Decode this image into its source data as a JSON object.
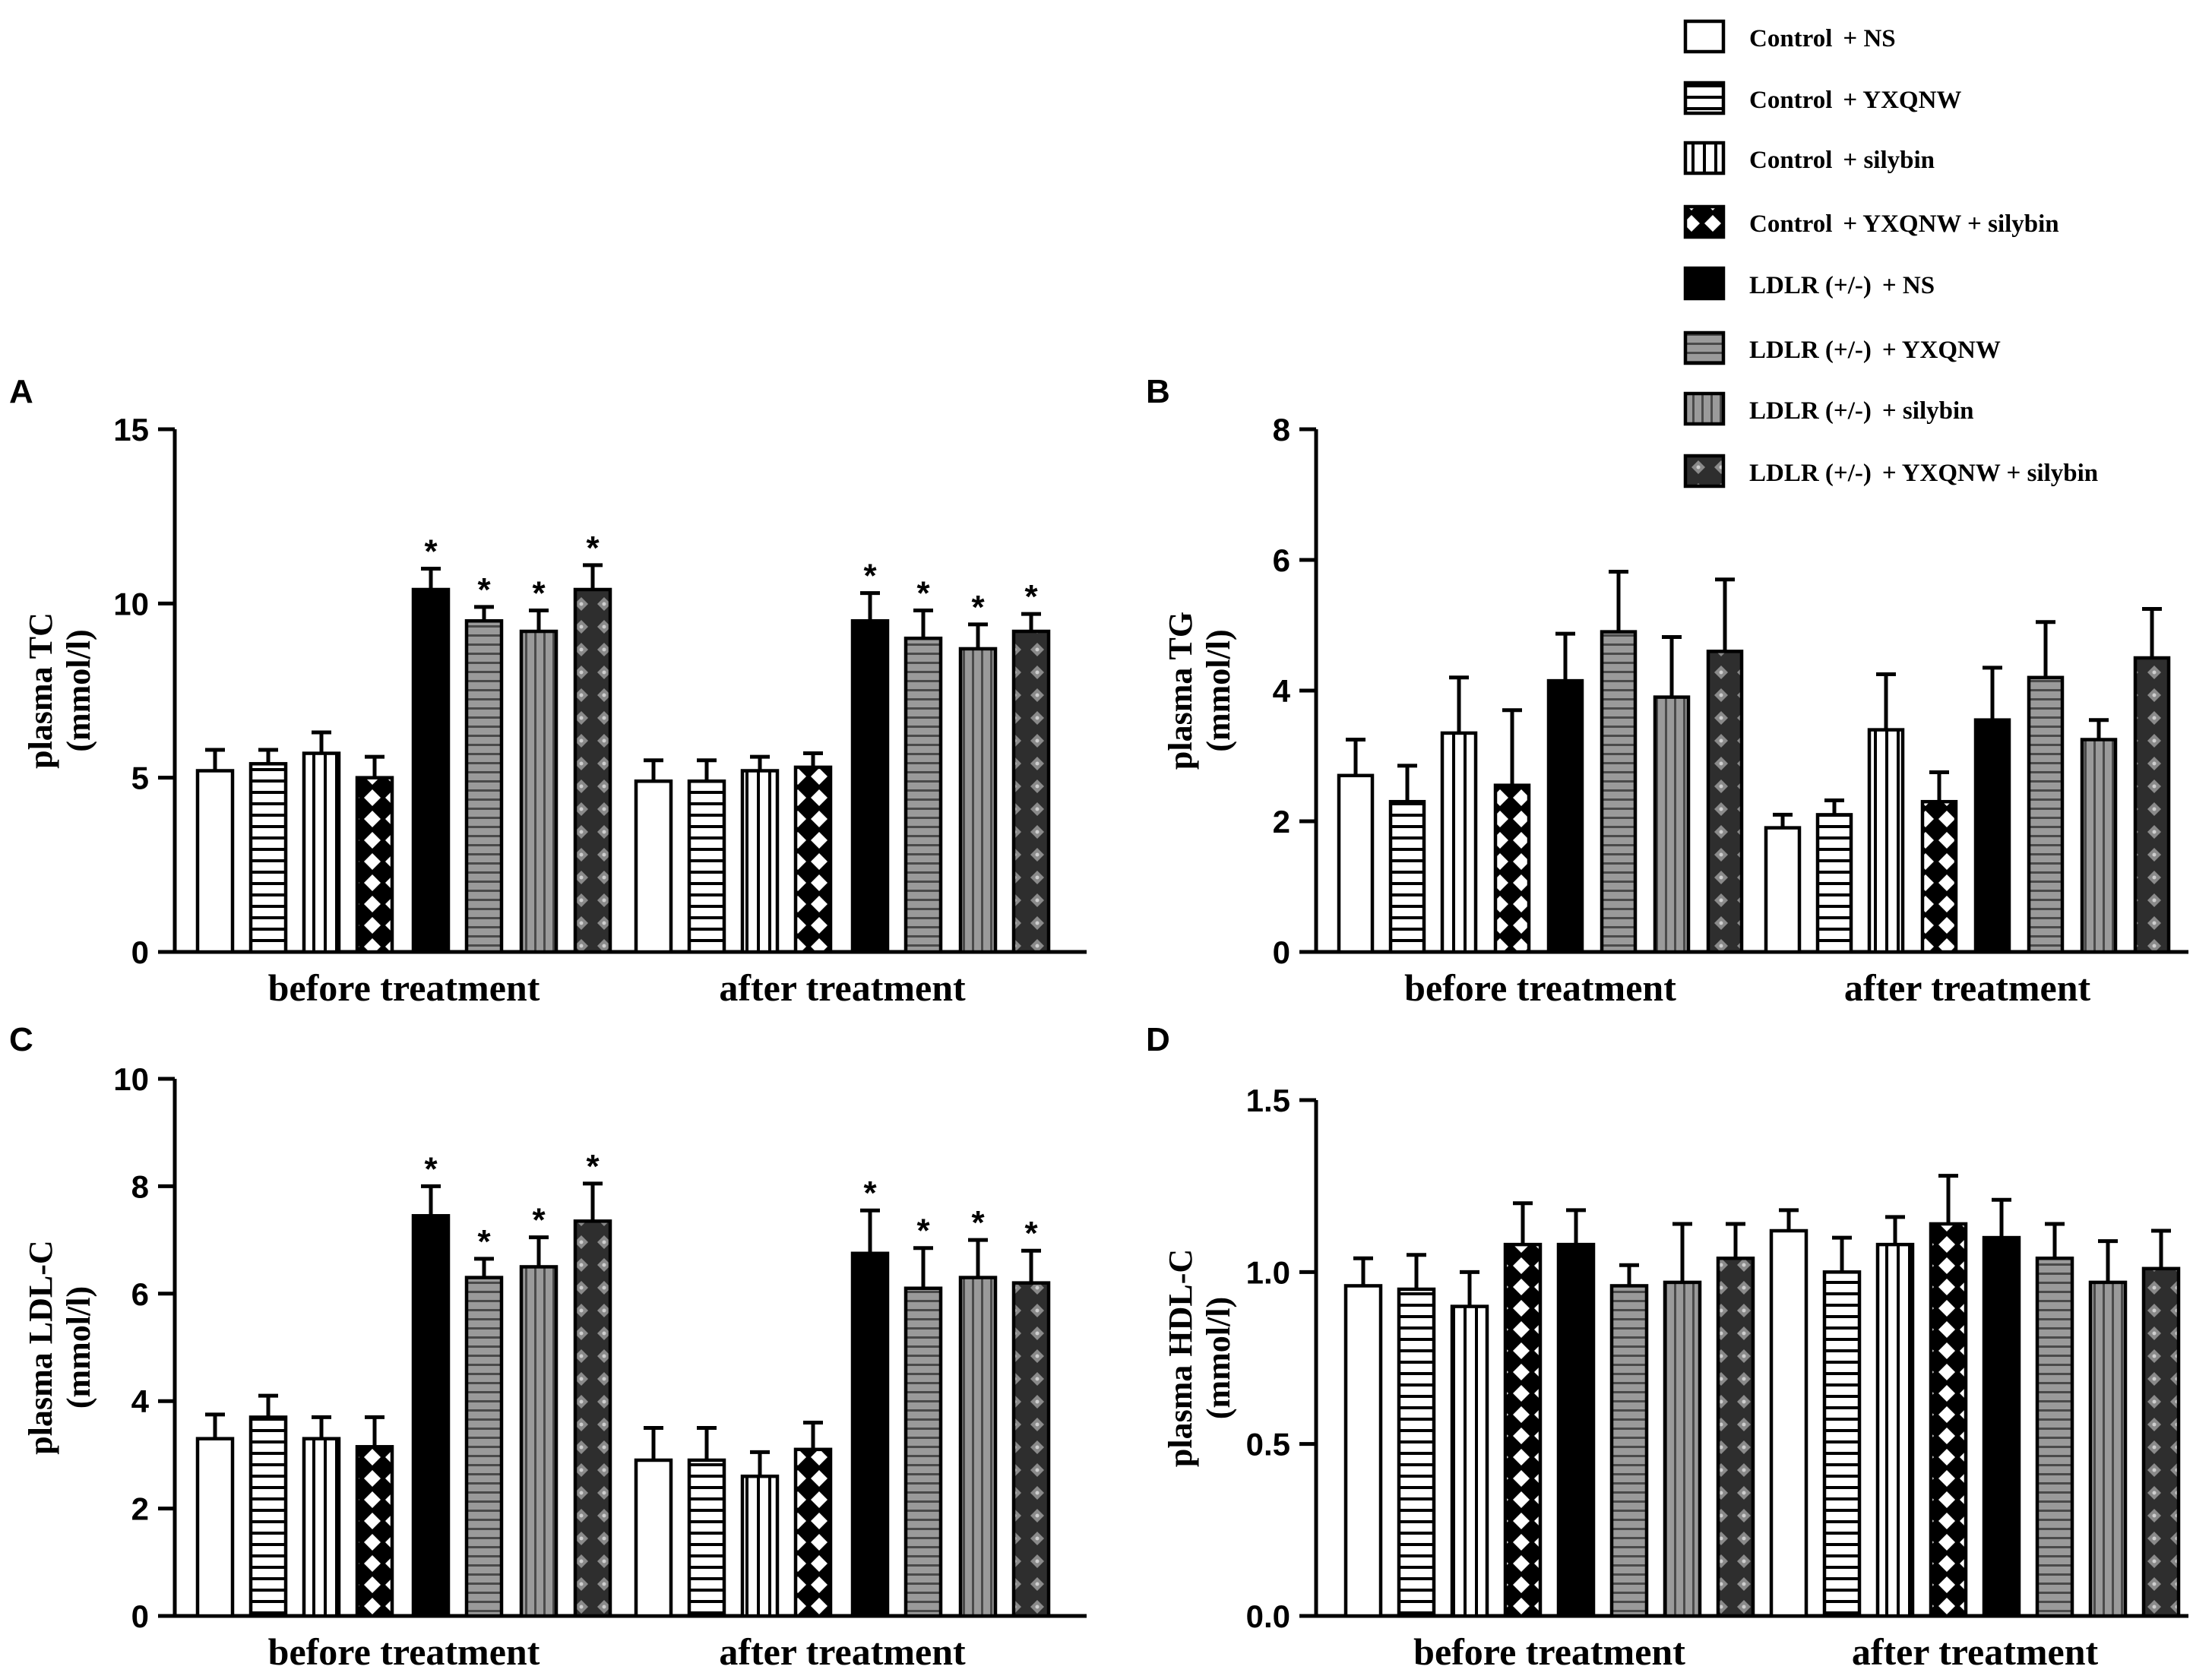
{
  "chart_data": [
    {
      "type": "bar",
      "panel": "A",
      "ylabel": "plasma TC",
      "ylabel_unit": "(mmol/l)",
      "ylim": [
        0,
        15
      ],
      "yticks": [
        "0",
        "5",
        "10",
        "15"
      ],
      "categories": [
        "before treatment",
        "after treatment"
      ],
      "series": [
        {
          "name": "Control + NS",
          "values": [
            5.2,
            4.9
          ],
          "errors": [
            0.6,
            0.6
          ],
          "significant": [
            false,
            false
          ]
        },
        {
          "name": "Control + YXQNW",
          "values": [
            5.4,
            4.9
          ],
          "errors": [
            0.4,
            0.6
          ],
          "significant": [
            false,
            false
          ]
        },
        {
          "name": "Control + silybin",
          "values": [
            5.7,
            5.2
          ],
          "errors": [
            0.6,
            0.4
          ],
          "significant": [
            false,
            false
          ]
        },
        {
          "name": "Control + YXQNW + silybin",
          "values": [
            5.0,
            5.3
          ],
          "errors": [
            0.6,
            0.4
          ],
          "significant": [
            false,
            false
          ]
        },
        {
          "name": "LDLR (+/-) + NS",
          "values": [
            10.4,
            9.5
          ],
          "errors": [
            0.6,
            0.8
          ],
          "significant": [
            true,
            true
          ]
        },
        {
          "name": "LDLR (+/-) + YXQNW",
          "values": [
            9.5,
            9.0
          ],
          "errors": [
            0.4,
            0.8
          ],
          "significant": [
            true,
            true
          ]
        },
        {
          "name": "LDLR (+/-) + silybin",
          "values": [
            9.2,
            8.7
          ],
          "errors": [
            0.6,
            0.7
          ],
          "significant": [
            true,
            true
          ]
        },
        {
          "name": "LDLR (+/-) + YXQNW + silybin",
          "values": [
            10.4,
            9.2
          ],
          "errors": [
            0.7,
            0.5
          ],
          "significant": [
            true,
            true
          ]
        }
      ]
    },
    {
      "type": "bar",
      "panel": "B",
      "ylabel": "plasma TG",
      "ylabel_unit": "(mmol/l)",
      "ylim": [
        0,
        8
      ],
      "yticks": [
        "0",
        "2",
        "4",
        "6",
        "8"
      ],
      "categories": [
        "before treatment",
        "after treatment"
      ],
      "series": [
        {
          "name": "Control + NS",
          "values": [
            2.7,
            1.9
          ],
          "errors": [
            0.55,
            0.2
          ],
          "significant": [
            false,
            false
          ]
        },
        {
          "name": "Control + YXQNW",
          "values": [
            2.3,
            2.1
          ],
          "errors": [
            0.55,
            0.22
          ],
          "significant": [
            false,
            false
          ]
        },
        {
          "name": "Control + silybin",
          "values": [
            3.35,
            3.4
          ],
          "errors": [
            0.85,
            0.85
          ],
          "significant": [
            false,
            false
          ]
        },
        {
          "name": "Control + YXQNW + silybin",
          "values": [
            2.55,
            2.3
          ],
          "errors": [
            1.15,
            0.45
          ],
          "significant": [
            false,
            false
          ]
        },
        {
          "name": "LDLR (+/-) + NS",
          "values": [
            4.15,
            3.55
          ],
          "errors": [
            0.72,
            0.8
          ],
          "significant": [
            false,
            false
          ]
        },
        {
          "name": "LDLR (+/-) + YXQNW",
          "values": [
            4.9,
            4.2
          ],
          "errors": [
            0.92,
            0.85
          ],
          "significant": [
            false,
            false
          ]
        },
        {
          "name": "LDLR (+/-) + silybin",
          "values": [
            3.9,
            3.25
          ],
          "errors": [
            0.92,
            0.3
          ],
          "significant": [
            false,
            false
          ]
        },
        {
          "name": "LDLR (+/-) + YXQNW + silybin",
          "values": [
            4.6,
            4.5
          ],
          "errors": [
            1.1,
            0.75
          ],
          "significant": [
            false,
            false
          ]
        }
      ]
    },
    {
      "type": "bar",
      "panel": "C",
      "ylabel": "plasma LDL-C",
      "ylabel_unit": "(mmol/l)",
      "ylim": [
        0,
        10
      ],
      "yticks": [
        "0",
        "2",
        "4",
        "6",
        "8",
        "10"
      ],
      "categories": [
        "before treatment",
        "after treatment"
      ],
      "series": [
        {
          "name": "Control + NS",
          "values": [
            3.3,
            2.9
          ],
          "errors": [
            0.45,
            0.6
          ],
          "significant": [
            false,
            false
          ]
        },
        {
          "name": "Control + YXQNW",
          "values": [
            3.7,
            2.9
          ],
          "errors": [
            0.4,
            0.6
          ],
          "significant": [
            false,
            false
          ]
        },
        {
          "name": "Control + silybin",
          "values": [
            3.3,
            2.6
          ],
          "errors": [
            0.4,
            0.45
          ],
          "significant": [
            false,
            false
          ]
        },
        {
          "name": "Control + YXQNW + silybin",
          "values": [
            3.15,
            3.1
          ],
          "errors": [
            0.55,
            0.5
          ],
          "significant": [
            false,
            false
          ]
        },
        {
          "name": "LDLR (+/-) + NS",
          "values": [
            7.45,
            6.75
          ],
          "errors": [
            0.55,
            0.8
          ],
          "significant": [
            true,
            true
          ]
        },
        {
          "name": "LDLR (+/-) + YXQNW",
          "values": [
            6.3,
            6.1
          ],
          "errors": [
            0.35,
            0.75
          ],
          "significant": [
            true,
            true
          ]
        },
        {
          "name": "LDLR (+/-) + silybin",
          "values": [
            6.5,
            6.3
          ],
          "errors": [
            0.55,
            0.7
          ],
          "significant": [
            true,
            true
          ]
        },
        {
          "name": "LDLR (+/-) + YXQNW + silybin",
          "values": [
            7.35,
            6.2
          ],
          "errors": [
            0.7,
            0.6
          ],
          "significant": [
            true,
            true
          ]
        }
      ]
    },
    {
      "type": "bar",
      "panel": "D",
      "ylabel": "plasma HDL-C",
      "ylabel_unit": "(mmol/l)",
      "ylim": [
        0,
        1.5
      ],
      "yticks": [
        "0.0",
        "0.5",
        "1.0",
        "1.5"
      ],
      "categories": [
        "before treatment",
        "after treatment"
      ],
      "series": [
        {
          "name": "Control + NS",
          "values": [
            0.96,
            1.12
          ],
          "errors": [
            0.08,
            0.06
          ],
          "significant": [
            false,
            false
          ]
        },
        {
          "name": "Control + YXQNW",
          "values": [
            0.95,
            1.0
          ],
          "errors": [
            0.1,
            0.1
          ],
          "significant": [
            false,
            false
          ]
        },
        {
          "name": "Control + silybin",
          "values": [
            0.9,
            1.08
          ],
          "errors": [
            0.1,
            0.08
          ],
          "significant": [
            false,
            false
          ]
        },
        {
          "name": "Control + YXQNW + silybin",
          "values": [
            1.08,
            1.14
          ],
          "errors": [
            0.12,
            0.14
          ],
          "significant": [
            false,
            false
          ]
        },
        {
          "name": "LDLR (+/-) + NS",
          "values": [
            1.08,
            1.1
          ],
          "errors": [
            0.1,
            0.11
          ],
          "significant": [
            false,
            false
          ]
        },
        {
          "name": "LDLR (+/-) + YXQNW",
          "values": [
            0.96,
            1.04
          ],
          "errors": [
            0.06,
            0.1
          ],
          "significant": [
            false,
            false
          ]
        },
        {
          "name": "LDLR (+/-) + silybin",
          "values": [
            0.97,
            0.97
          ],
          "errors": [
            0.17,
            0.12
          ],
          "significant": [
            false,
            false
          ]
        },
        {
          "name": "LDLR (+/-) + YXQNW + silybin",
          "values": [
            1.04,
            1.01
          ],
          "errors": [
            0.1,
            0.11
          ],
          "significant": [
            false,
            false
          ]
        }
      ]
    }
  ],
  "legend": {
    "items": [
      {
        "group": "Control",
        "treatment": "+ NS",
        "pattern": "white",
        "fill_color": "#ffffff"
      },
      {
        "group": "Control",
        "treatment": "+ YXQNW",
        "pattern": "horizontal-lines",
        "fill_color": "#ffffff"
      },
      {
        "group": "Control",
        "treatment": "+ silybin",
        "pattern": "vertical-lines",
        "fill_color": "#ffffff"
      },
      {
        "group": "Control",
        "treatment": "+ YXQNW  + silybin",
        "pattern": "crosshatch",
        "fill_color": "#ffffff"
      },
      {
        "group": "LDLR  (+/-)",
        "treatment": "+ NS",
        "pattern": "solid-black",
        "fill_color": "#000000"
      },
      {
        "group": "LDLR  (+/-)",
        "treatment": "+ YXQNW",
        "pattern": "gray-horizontal-lines",
        "fill_color": "#8c8c8c"
      },
      {
        "group": "LDLR  (+/-)",
        "treatment": "+ silybin",
        "pattern": "gray-vertical-lines",
        "fill_color": "#8c8c8c"
      },
      {
        "group": "LDLR  (+/-)",
        "treatment": "+ YXQNW  + silybin",
        "pattern": "dark-dotted-diamonds",
        "fill_color": "#3a3a3a"
      }
    ]
  },
  "significance_marker": "*"
}
